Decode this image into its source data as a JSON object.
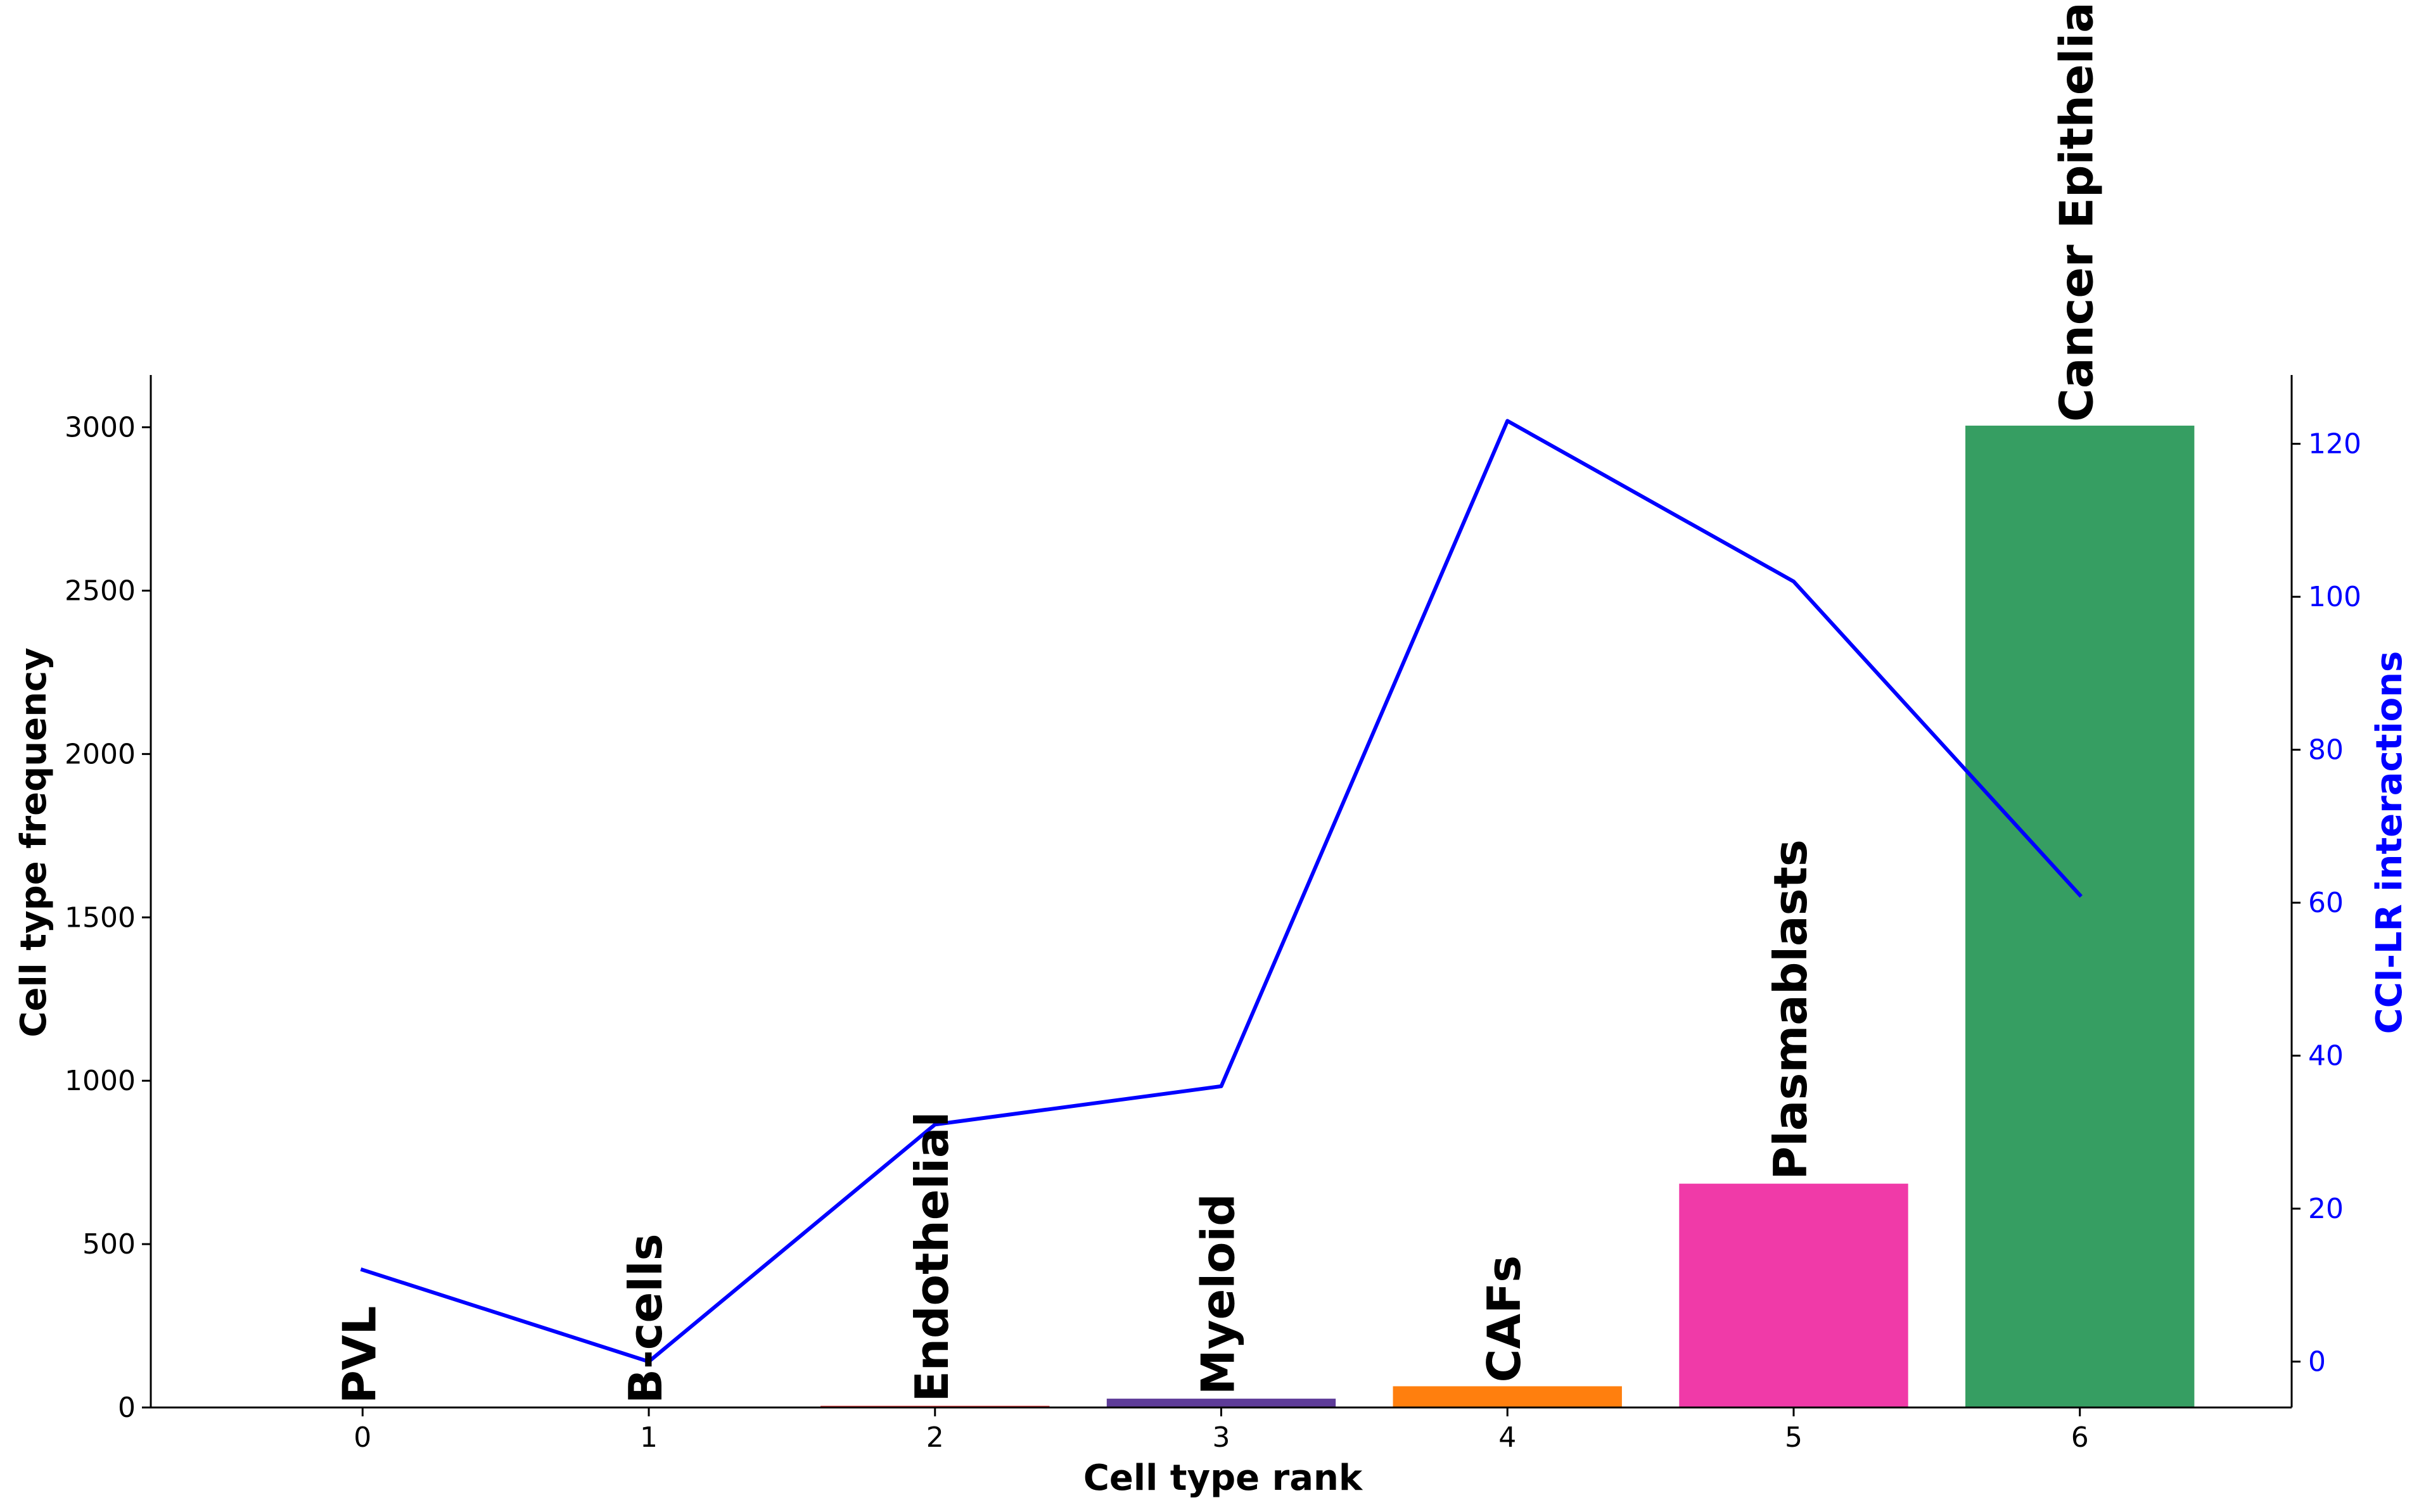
{
  "chart_data": {
    "type": "bar",
    "title": "",
    "xlabel": "Cell type rank",
    "ylabel_left": "Cell type frequency",
    "ylabel_right": "CCI-LR interactions",
    "x": [
      0,
      1,
      2,
      3,
      4,
      5,
      6
    ],
    "x_ticks": [
      "0",
      "1",
      "2",
      "3",
      "4",
      "5",
      "6"
    ],
    "xlim": [
      -0.74,
      6.74
    ],
    "ylim_left": [
      0,
      3160
    ],
    "y_ticks_left": [
      "0",
      "500",
      "1000",
      "1500",
      "2000",
      "2500",
      "3000"
    ],
    "ylim_right": [
      -6,
      129
    ],
    "y_ticks_right": [
      "0",
      "20",
      "40",
      "60",
      "80",
      "100",
      "120"
    ],
    "bar_labels": [
      "PVL",
      "B-cells",
      "Endothelial",
      "Myeloid",
      "CAFs",
      "Plasmablasts",
      "Cancer Epithelial"
    ],
    "bar_values": [
      0,
      0,
      5,
      27,
      65,
      685,
      3005
    ],
    "bar_colors": [
      "#1f77b4",
      "#8c564b",
      "#d62728",
      "#5e3c99",
      "#ff7f0e",
      "#f03aa8",
      "#369e62"
    ],
    "line_values": [
      12,
      0,
      31,
      36,
      123,
      102,
      61
    ],
    "line_color": "#0000ff",
    "right_axis_color": "#0000ff",
    "grid": false
  }
}
